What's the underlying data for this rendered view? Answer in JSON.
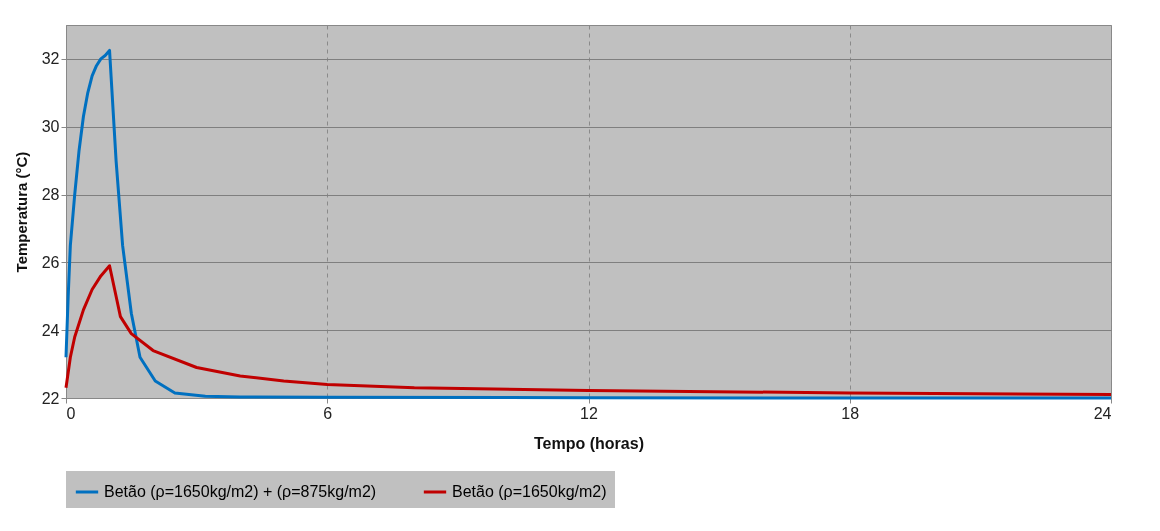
{
  "chart_data": {
    "type": "line",
    "xlabel": "Tempo (horas)",
    "ylabel": "Temperatura (°C)",
    "xlim": [
      0,
      24
    ],
    "xticks": [
      0,
      6,
      12,
      18,
      24
    ],
    "ylim": [
      22,
      33
    ],
    "yticks": [
      22,
      24,
      26,
      28,
      30,
      32
    ],
    "grid": true,
    "legend": "bottom",
    "line_style": "solid",
    "marker": "none",
    "series": [
      {
        "name": "Betão (ρ=1650kg/m2) + (ρ=875kg/m2)",
        "color": "#0070c0",
        "x": [
          0,
          0.05,
          0.1,
          0.2,
          0.3,
          0.4,
          0.5,
          0.6,
          0.7,
          0.8,
          0.9,
          1.0,
          1.15,
          1.3,
          1.5,
          1.7,
          2.05,
          2.5,
          3.2,
          4,
          6,
          12,
          18,
          24
        ],
        "values": [
          23.2,
          25,
          26.5,
          28,
          29.3,
          30.3,
          31,
          31.5,
          31.8,
          32,
          32.1,
          32.25,
          29,
          26.5,
          24.5,
          23.2,
          22.5,
          22.15,
          22.05,
          22.03,
          22.02,
          22.01,
          22.0,
          22.0
        ]
      },
      {
        "name": "Betão (ρ=1650kg/m2)",
        "color": "#c00000",
        "x": [
          0,
          0.1,
          0.2,
          0.4,
          0.6,
          0.8,
          1.0,
          1.15,
          1.25,
          1.5,
          2,
          3,
          4,
          5,
          6,
          8,
          12,
          18,
          24
        ],
        "values": [
          22.3,
          23.2,
          23.8,
          24.6,
          25.2,
          25.6,
          25.9,
          25.0,
          24.4,
          23.9,
          23.4,
          22.9,
          22.65,
          22.5,
          22.4,
          22.3,
          22.22,
          22.15,
          22.1
        ]
      }
    ]
  }
}
